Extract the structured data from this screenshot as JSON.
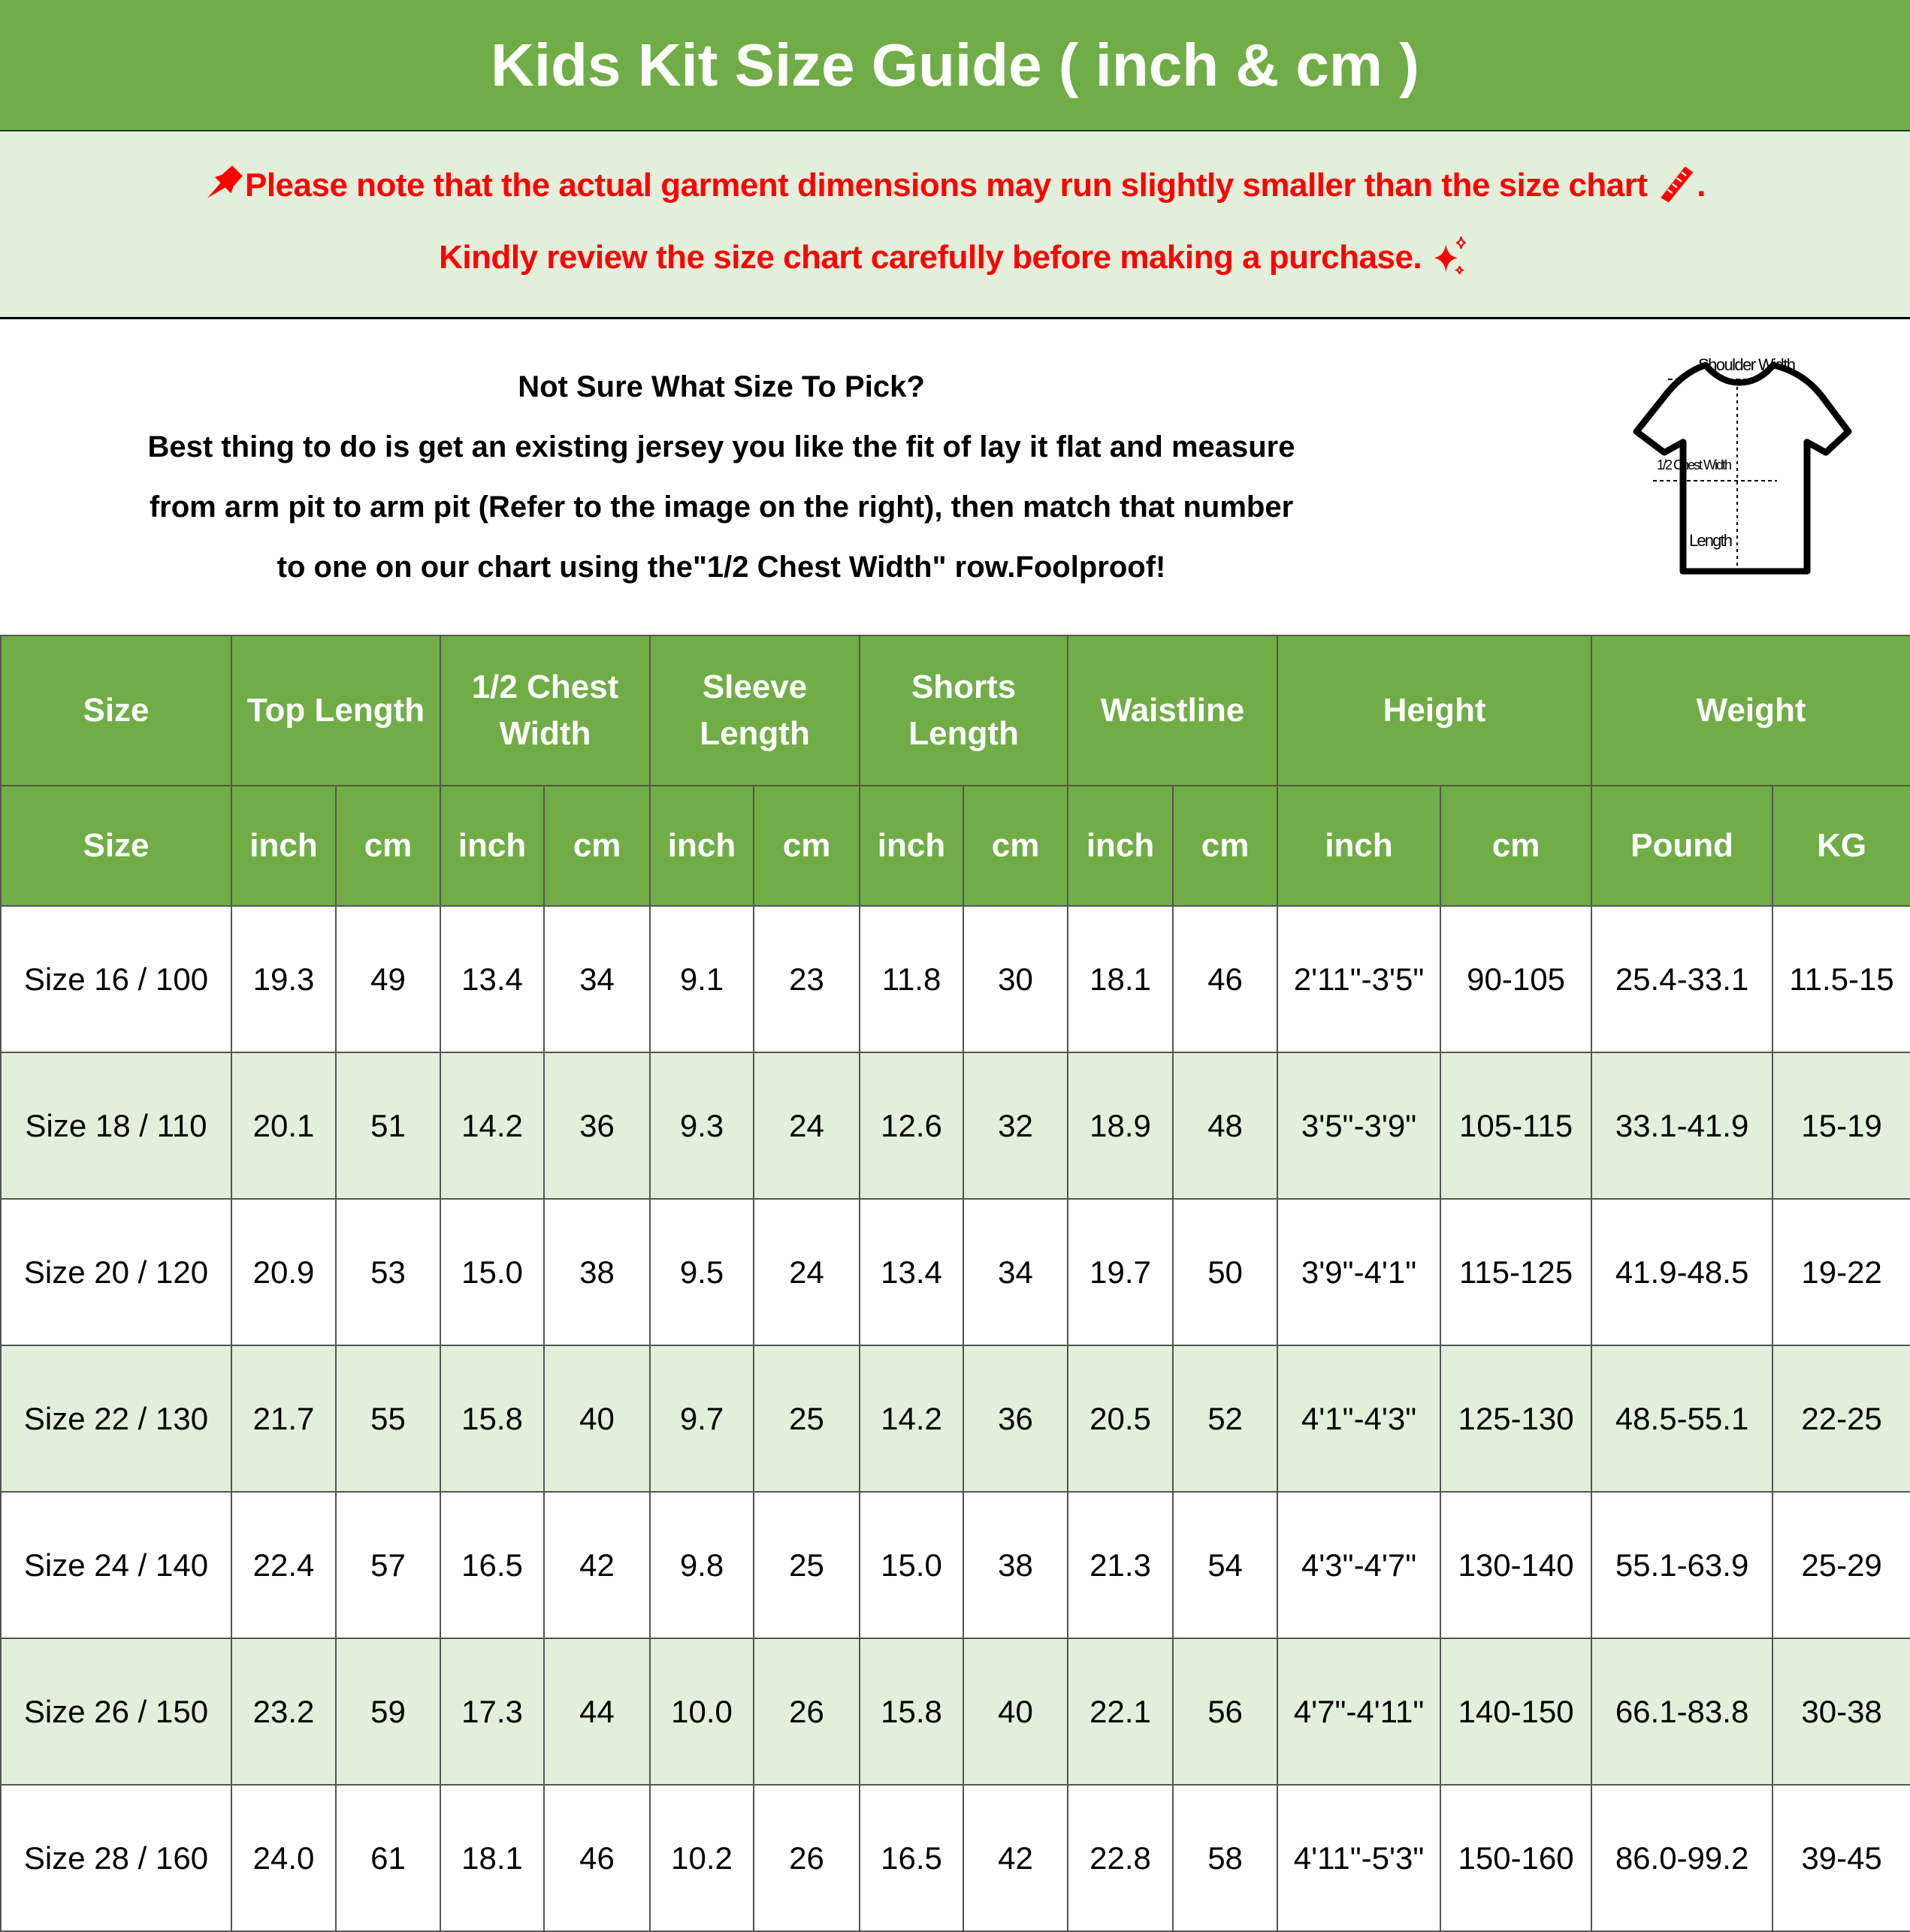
{
  "title": "Kids Kit Size Guide ( inch & cm )",
  "note": {
    "line1": "Please note that the actual garment dimensions may run slightly smaller than the size chart",
    "line1_end": ".",
    "line2": "Kindly review the size chart carefully before making a purchase.",
    "icons": [
      "pushpin-icon",
      "ruler-icon",
      "sparkles-icon"
    ],
    "color": "#ff0000"
  },
  "info": {
    "heading": "Not Sure What Size To Pick?",
    "lines": [
      "Best thing to do is get an existing jersey you like the fit of lay it flat and measure",
      "from arm pit to arm pit (Refer to the image on the right), then match that number",
      "to one on our chart using the\"1/2 Chest Width\" row.Foolproof!"
    ]
  },
  "diagram": {
    "shoulder": "Shoulder Width",
    "chest": "1/2 Chest Width",
    "length": "Length"
  },
  "colors": {
    "header_green": "#70ad47",
    "row_alt": "#e2efda"
  },
  "table": {
    "groups": [
      "Size",
      "Top Length",
      "1/2 Chest Width",
      "Sleeve Length",
      "Shorts Length",
      "Waistline",
      "Height",
      "Weight"
    ],
    "units": [
      "Size",
      "inch",
      "cm",
      "inch",
      "cm",
      "inch",
      "cm",
      "inch",
      "cm",
      "inch",
      "cm",
      "inch",
      "cm",
      "Pound",
      "KG"
    ],
    "rows": [
      [
        "Size 16 / 100",
        "19.3",
        "49",
        "13.4",
        "34",
        "9.1",
        "23",
        "11.8",
        "30",
        "18.1",
        "46",
        "2'11\"-3'5\"",
        "90-105",
        "25.4-33.1",
        "11.5-15"
      ],
      [
        "Size 18 / 110",
        "20.1",
        "51",
        "14.2",
        "36",
        "9.3",
        "24",
        "12.6",
        "32",
        "18.9",
        "48",
        "3'5\"-3'9\"",
        "105-115",
        "33.1-41.9",
        "15-19"
      ],
      [
        "Size 20 / 120",
        "20.9",
        "53",
        "15.0",
        "38",
        "9.5",
        "24",
        "13.4",
        "34",
        "19.7",
        "50",
        "3'9\"-4'1\"",
        "115-125",
        "41.9-48.5",
        "19-22"
      ],
      [
        "Size 22 / 130",
        "21.7",
        "55",
        "15.8",
        "40",
        "9.7",
        "25",
        "14.2",
        "36",
        "20.5",
        "52",
        "4'1\"-4'3\"",
        "125-130",
        "48.5-55.1",
        "22-25"
      ],
      [
        "Size 24 / 140",
        "22.4",
        "57",
        "16.5",
        "42",
        "9.8",
        "25",
        "15.0",
        "38",
        "21.3",
        "54",
        "4'3\"-4'7\"",
        "130-140",
        "55.1-63.9",
        "25-29"
      ],
      [
        "Size 26 / 150",
        "23.2",
        "59",
        "17.3",
        "44",
        "10.0",
        "26",
        "15.8",
        "40",
        "22.1",
        "56",
        "4'7\"-4'11\"",
        "140-150",
        "66.1-83.8",
        "30-38"
      ],
      [
        "Size 28 / 160",
        "24.0",
        "61",
        "18.1",
        "46",
        "10.2",
        "26",
        "16.5",
        "42",
        "22.8",
        "58",
        "4'11\"-5'3\"",
        "150-160",
        "86.0-99.2",
        "39-45"
      ]
    ]
  }
}
